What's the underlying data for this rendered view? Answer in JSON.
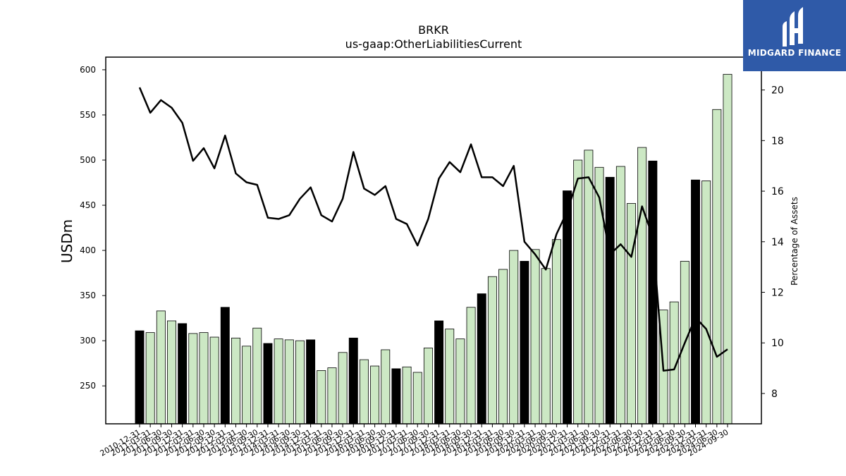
{
  "chart_data": {
    "type": "bar",
    "title": "BRKR",
    "subtitle": "us-gaap:OtherLiabilitiesCurrent",
    "ylabel": "USDm",
    "y2label": "Percentage of Assets",
    "ylim": [
      208,
      614
    ],
    "y2lim": [
      6.8,
      21.3
    ],
    "yticks": [
      250,
      300,
      350,
      400,
      450,
      500,
      550,
      600
    ],
    "y2ticks": [
      8,
      10,
      12,
      14,
      16,
      18,
      20
    ],
    "categories": [
      "2010-12-31",
      "2011-03-31",
      "2011-06-30",
      "2011-09-30",
      "2011-12-31",
      "2012-03-31",
      "2012-06-30",
      "2012-09-30",
      "2012-12-31",
      "2013-03-31",
      "2013-06-30",
      "2013-09-30",
      "2013-12-31",
      "2014-03-31",
      "2014-06-30",
      "2014-09-30",
      "2014-12-31",
      "2015-03-31",
      "2015-06-30",
      "2015-09-30",
      "2015-12-31",
      "2016-03-31",
      "2016-06-30",
      "2016-09-30",
      "2016-12-31",
      "2017-03-31",
      "2017-06-30",
      "2017-09-30",
      "2017-12-31",
      "2018-03-31",
      "2018-06-30",
      "2018-09-30",
      "2018-12-31",
      "2019-03-31",
      "2019-06-30",
      "2019-09-30",
      "2019-12-31",
      "2020-03-31",
      "2020-06-30",
      "2020-09-30",
      "2020-12-31",
      "2021-03-31",
      "2021-06-30",
      "2021-09-30",
      "2021-12-31",
      "2022-03-31",
      "2022-06-30",
      "2022-09-30",
      "2022-12-31",
      "2023-03-31",
      "2023-06-30",
      "2023-09-30",
      "2023-12-31",
      "2024-03-31",
      "2024-06-30",
      "2024-09-30"
    ],
    "xtick_labels": [
      "2010-12-31",
      "2011-03-31",
      "2011-06-30",
      "2011-09-30",
      "2011-12-31",
      "2012-03-31",
      "2012-06-30",
      "2012-09-30",
      "2012-12-31",
      "2013-03-31",
      "2013-06-30",
      "2013-09-30",
      "2013-12-31",
      "2014-03-31",
      "2014-06-30",
      "2014-09-30",
      "2014-12-31",
      "2015-03-31",
      "2015-06-30",
      "2015-09-30",
      "2015-12-31",
      "2016-03-31",
      "2016-06-30",
      "2016-09-30",
      "2016-12-31",
      "2017-03-31",
      "2017-06-30",
      "2017-09-30",
      "2017-12-31",
      "2018-03-31",
      "2018-06-30",
      "2018-09-30",
      "2018-12-31",
      "2019-03-31",
      "2019-06-30",
      "2019-09-30",
      "2019-12-31",
      "2020-03-31",
      "2020-06-30",
      "2020-09-30",
      "2020-12-31",
      "2021-03-31",
      "2021-06-30",
      "2021-09-30",
      "2021-12-31",
      "2022-03-31",
      "2022-06-30",
      "2022-09-30",
      "2022-12-31",
      "2023-03-31",
      "2023-06-30",
      "2023-09-30",
      "2023-12-31",
      "2024-03-31",
      "2024-06-30",
      "2024-09-30"
    ],
    "values": [
      311,
      309,
      333,
      322,
      319,
      308,
      309,
      304,
      337,
      303,
      294,
      314,
      297,
      302,
      301,
      300,
      301,
      267,
      270,
      287,
      303,
      279,
      272,
      290,
      269,
      271,
      265,
      292,
      322,
      313,
      302,
      337,
      352,
      371,
      379,
      400,
      388,
      401,
      380,
      412,
      466,
      500,
      511,
      492,
      481,
      493,
      452,
      514,
      499,
      334,
      343,
      388,
      478,
      477,
      556,
      595
    ],
    "bar_colors": [
      "#000000",
      "#cce8c4",
      "#cce8c4",
      "#cce8c4",
      "#000000",
      "#cce8c4",
      "#cce8c4",
      "#cce8c4",
      "#000000",
      "#cce8c4",
      "#cce8c4",
      "#cce8c4",
      "#000000",
      "#cce8c4",
      "#cce8c4",
      "#cce8c4",
      "#000000",
      "#cce8c4",
      "#cce8c4",
      "#cce8c4",
      "#000000",
      "#cce8c4",
      "#cce8c4",
      "#cce8c4",
      "#000000",
      "#cce8c4",
      "#cce8c4",
      "#cce8c4",
      "#000000",
      "#cce8c4",
      "#cce8c4",
      "#cce8c4",
      "#000000",
      "#cce8c4",
      "#cce8c4",
      "#cce8c4",
      "#000000",
      "#cce8c4",
      "#cce8c4",
      "#cce8c4",
      "#000000",
      "#cce8c4",
      "#cce8c4",
      "#cce8c4",
      "#000000",
      "#cce8c4",
      "#cce8c4",
      "#cce8c4",
      "#000000",
      "#cce8c4",
      "#cce8c4",
      "#cce8c4",
      "#000000",
      "#cce8c4",
      "#cce8c4",
      "#cce8c4"
    ],
    "line_values": [
      20.1,
      19.1,
      19.6,
      19.3,
      18.7,
      17.2,
      17.7,
      16.9,
      18.2,
      16.7,
      16.35,
      16.25,
      14.95,
      14.9,
      15.05,
      15.7,
      16.15,
      15.05,
      14.8,
      15.7,
      17.55,
      16.1,
      15.85,
      16.2,
      14.9,
      14.7,
      13.85,
      14.9,
      16.5,
      17.15,
      16.75,
      17.85,
      16.55,
      16.55,
      16.2,
      17.0,
      14.0,
      13.5,
      12.9,
      14.3,
      15.2,
      16.5,
      16.55,
      15.75,
      13.5,
      13.9,
      13.4,
      15.4,
      14.2,
      8.9,
      8.95,
      10.0,
      11.0,
      10.55,
      9.45,
      9.75
    ],
    "colors": {
      "bar_year_end": "#000000",
      "bar_quarter": "#cce8c4",
      "line": "#000000"
    },
    "grid": false
  },
  "logo": {
    "text": "MIDGARD FINANCE",
    "color": "#2f5aa8"
  }
}
